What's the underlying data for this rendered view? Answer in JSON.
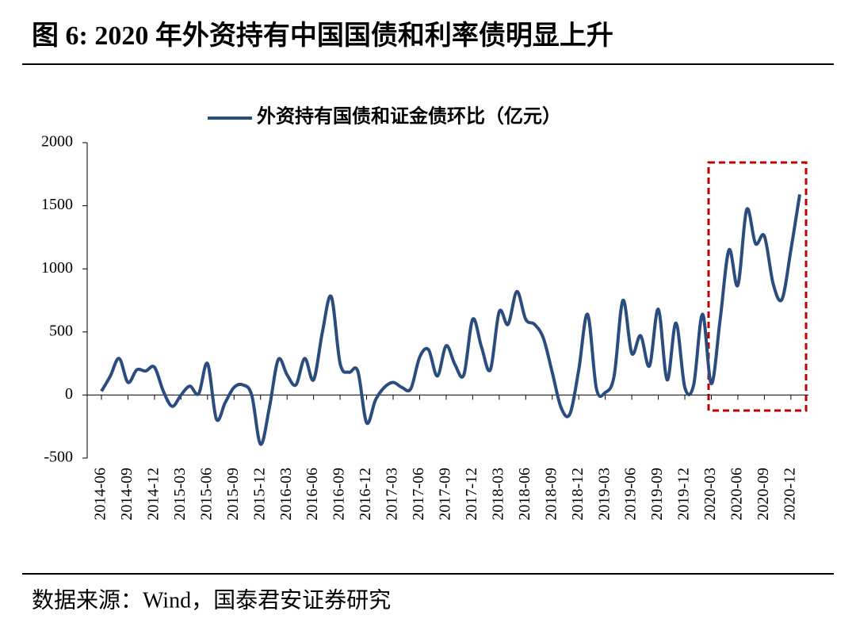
{
  "title": "图 6:  2020 年外资持有中国国债和利率债明显上升",
  "source": "数据来源：Wind，国泰君安证券研究",
  "chart_data": {
    "type": "line",
    "categories": [
      "2014-06",
      null,
      null,
      "2014-09",
      null,
      null,
      "2014-12",
      null,
      null,
      "2015-03",
      null,
      null,
      "2015-06",
      null,
      null,
      "2015-09",
      null,
      null,
      "2015-12",
      null,
      null,
      "2016-03",
      null,
      null,
      "2016-06",
      null,
      null,
      "2016-09",
      null,
      null,
      "2016-12",
      null,
      null,
      "2017-03",
      null,
      null,
      "2017-06",
      null,
      null,
      "2017-09",
      null,
      null,
      "2017-12",
      null,
      null,
      "2018-03",
      null,
      null,
      "2018-06",
      null,
      null,
      "2018-09",
      null,
      null,
      "2018-12",
      null,
      null,
      "2019-03",
      null,
      null,
      "2019-06",
      null,
      null,
      "2019-09",
      null,
      null,
      "2019-12",
      null,
      null,
      "2020-03",
      null,
      null,
      "2020-06",
      null,
      null,
      "2020-09",
      null,
      null,
      "2020-12",
      null
    ],
    "series": [
      {
        "name": "外资持有国债和证金债环比（亿元）",
        "color": "#2b4c7e",
        "values": [
          30,
          150,
          290,
          100,
          200,
          190,
          220,
          30,
          -90,
          0,
          70,
          10,
          250,
          -190,
          -60,
          60,
          80,
          0,
          -390,
          -100,
          280,
          160,
          80,
          290,
          120,
          500,
          780,
          250,
          180,
          190,
          -220,
          -40,
          60,
          100,
          60,
          50,
          300,
          360,
          150,
          390,
          240,
          160,
          600,
          380,
          200,
          660,
          560,
          820,
          600,
          560,
          450,
          180,
          -100,
          -150,
          200,
          640,
          50,
          20,
          150,
          750,
          330,
          470,
          230,
          680,
          120,
          570,
          60,
          80,
          640,
          90,
          600,
          1150,
          870,
          1470,
          1200,
          1260,
          880,
          760,
          1150,
          1590
        ]
      }
    ],
    "ylim": [
      -500,
      2000
    ],
    "yticks": [
      -500,
      0,
      500,
      1000,
      1500,
      2000
    ],
    "legend": "top"
  }
}
